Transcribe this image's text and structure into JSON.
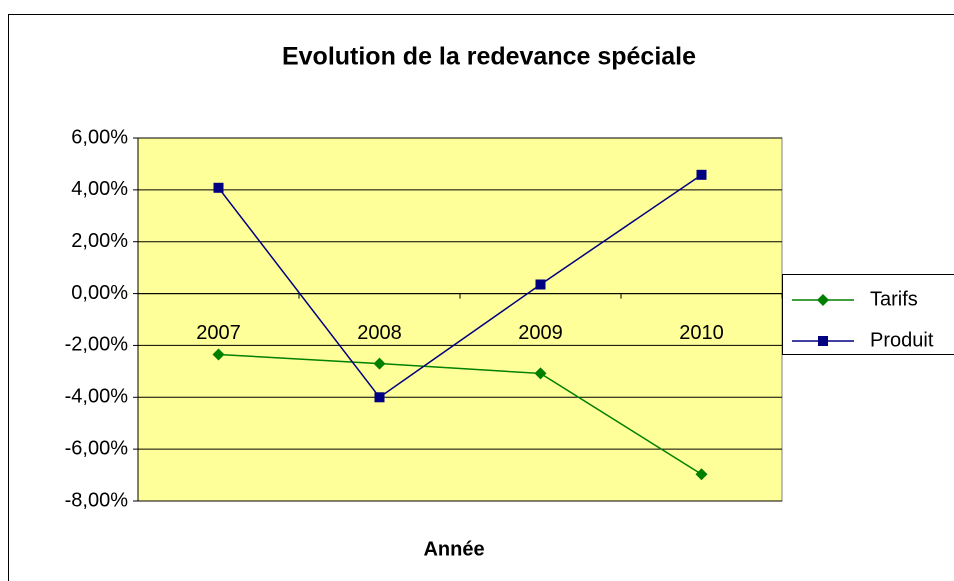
{
  "chart_data": {
    "type": "line",
    "title": "Evolution de la redevance spéciale",
    "x_label": "Année",
    "categories": [
      "2007",
      "2008",
      "2009",
      "2010"
    ],
    "series": [
      {
        "name": "Tarifs",
        "color": "#008000",
        "marker": "diamond",
        "values": [
          -2.35,
          -2.7,
          -3.08,
          -6.97
        ]
      },
      {
        "name": "Produit",
        "color": "#000080",
        "marker": "square",
        "values": [
          4.08,
          -4.0,
          0.35,
          4.58
        ]
      }
    ],
    "ylim": [
      -8,
      6
    ],
    "yticks": [
      {
        "value": -8,
        "label": "-8,00%"
      },
      {
        "value": -6,
        "label": "-6,00%"
      },
      {
        "value": -4,
        "label": "-4,00%"
      },
      {
        "value": -2,
        "label": "-2,00%"
      },
      {
        "value": 0,
        "label": "0,00%"
      },
      {
        "value": 2,
        "label": "2,00%"
      },
      {
        "value": 4,
        "label": "4,00%"
      },
      {
        "value": 6,
        "label": "6,00%"
      }
    ],
    "grid": true,
    "plot_background": "#ffff99",
    "legend": "right"
  }
}
